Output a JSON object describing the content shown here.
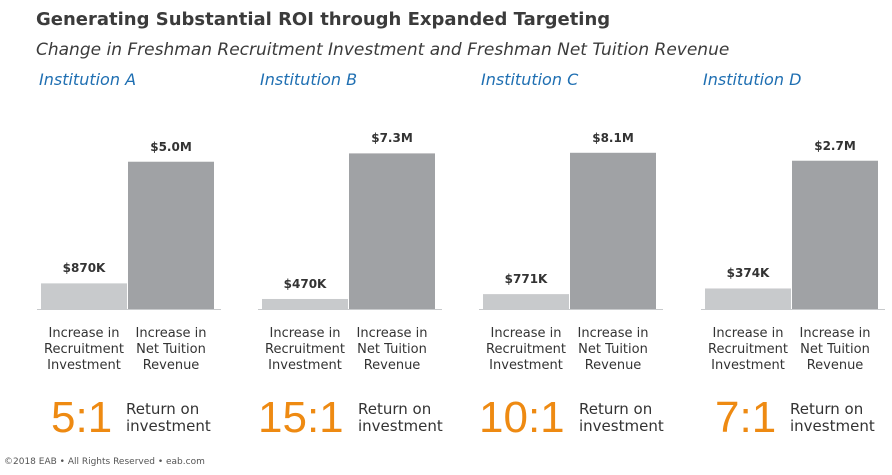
{
  "header": {
    "title": "Generating Substantial ROI through Expanded Targeting",
    "subtitle": "Change in Freshman Recruitment Investment and Freshman Net Tuition Revenue"
  },
  "colors": {
    "institution": "#1f6fb2",
    "investment_bar": "#c8cacc",
    "revenue_bar": "#a0a2a5",
    "ratio": "#ee8a12"
  },
  "chart_data": [
    {
      "type": "bar",
      "title": "Institution A",
      "categories": [
        "Increase in Recruitment Investment",
        "Increase in Net Tuition Revenue"
      ],
      "values": [
        0.87,
        5.0
      ],
      "value_labels": [
        "$870K",
        "$5.0M"
      ],
      "unit": "$M",
      "ylim": [
        0,
        5.5
      ],
      "ratio": "5:1",
      "ratio_caption": "Return on investment"
    },
    {
      "type": "bar",
      "title": "Institution B",
      "categories": [
        "Increase in Recruitment Investment",
        "Increase in Net Tuition Revenue"
      ],
      "values": [
        0.47,
        7.3
      ],
      "value_labels": [
        "$470K",
        "$7.3M"
      ],
      "unit": "$M",
      "ylim": [
        0,
        7.6
      ],
      "ratio": "15:1",
      "ratio_caption": "Return on investment"
    },
    {
      "type": "bar",
      "title": "Institution C",
      "categories": [
        "Increase in Recruitment Investment",
        "Increase in Net Tuition Revenue"
      ],
      "values": [
        0.771,
        8.1
      ],
      "value_labels": [
        "$771K",
        "$8.1M"
      ],
      "unit": "$M",
      "ylim": [
        0,
        8.4
      ],
      "ratio": "10:1",
      "ratio_caption": "Return on investment"
    },
    {
      "type": "bar",
      "title": "Institution D",
      "categories": [
        "Increase in Recruitment Investment",
        "Increase in Net Tuition Revenue"
      ],
      "values": [
        0.374,
        2.7
      ],
      "value_labels": [
        "$374K",
        "$2.7M"
      ],
      "unit": "$M",
      "ylim": [
        0,
        2.95
      ],
      "ratio": "7:1",
      "ratio_caption": "Return on investment"
    }
  ],
  "footer": {
    "text": "©2018 EAB • All Rights Reserved • eab.com"
  }
}
